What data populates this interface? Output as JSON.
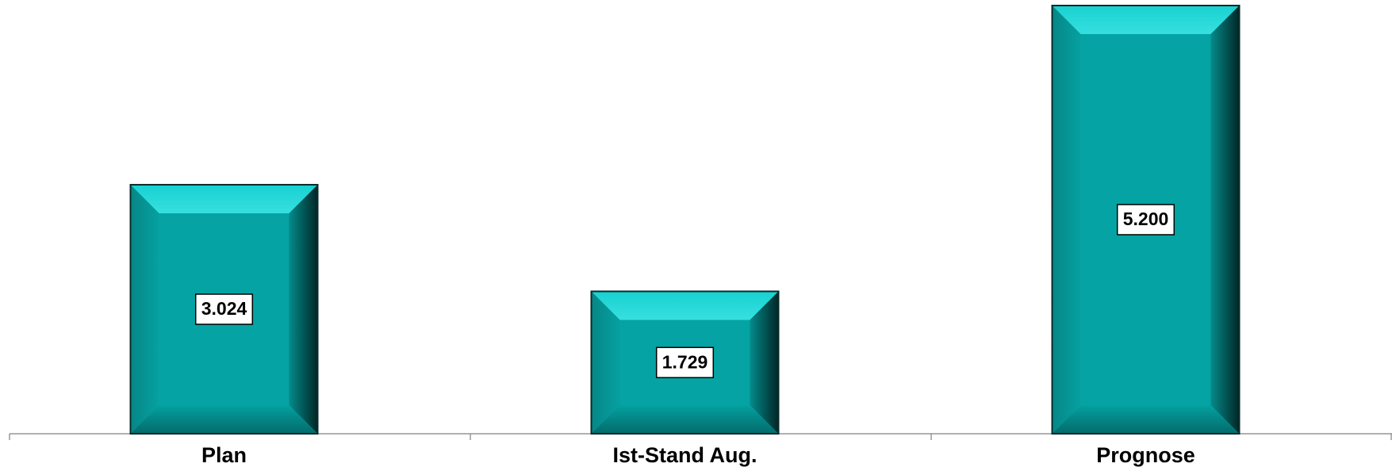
{
  "chart_data": {
    "type": "bar",
    "categories": [
      "Plan",
      "Ist-Stand Aug.",
      "Prognose"
    ],
    "values": [
      3024,
      1729,
      5200
    ],
    "value_labels": [
      "3.024",
      "1.729",
      "5.200"
    ],
    "color": "#05a3a3",
    "ylim": [
      0,
      5200
    ]
  }
}
